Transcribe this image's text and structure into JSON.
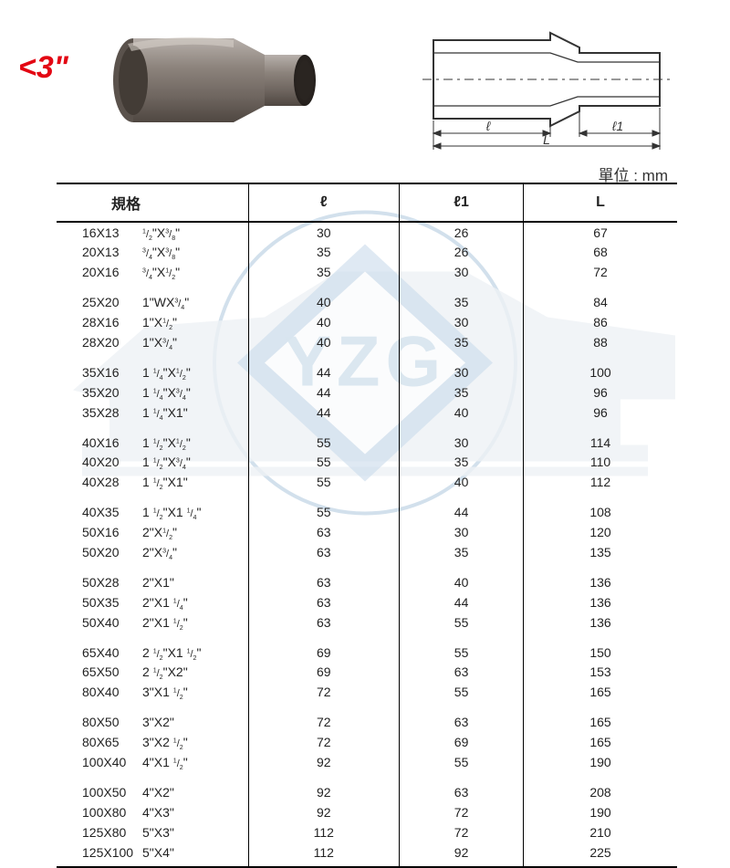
{
  "header": {
    "size_label": "<3\"",
    "size_label_color": "#e30613",
    "unit_label": "單位 : mm"
  },
  "table": {
    "columns": [
      "規格",
      "ℓ",
      "ℓ1",
      "L"
    ],
    "groups": [
      [
        {
          "code": "16X13",
          "inch": "1/2\"X3/8\"",
          "l": "30",
          "l1": "26",
          "L": "67"
        },
        {
          "code": "20X13",
          "inch": "3/4\"X3/8\"",
          "l": "35",
          "l1": "26",
          "L": "68"
        },
        {
          "code": "20X16",
          "inch": "3/4\"X1/2\"",
          "l": "35",
          "l1": "30",
          "L": "72"
        }
      ],
      [
        {
          "code": "25X20",
          "inch": "1\"WX3/4\"",
          "l": "40",
          "l1": "35",
          "L": "84"
        },
        {
          "code": "28X16",
          "inch": "1\"X1/2\"",
          "l": "40",
          "l1": "30",
          "L": "86"
        },
        {
          "code": "28X20",
          "inch": "1\"X3/4\"",
          "l": "40",
          "l1": "35",
          "L": "88"
        }
      ],
      [
        {
          "code": "35X16",
          "inch": "1 1/4\"X1/2\"",
          "l": "44",
          "l1": "30",
          "L": "100"
        },
        {
          "code": "35X20",
          "inch": "1 1/4\"X3/4\"",
          "l": "44",
          "l1": "35",
          "L": "96"
        },
        {
          "code": "35X28",
          "inch": "1 1/4\"X1\"",
          "l": "44",
          "l1": "40",
          "L": "96"
        }
      ],
      [
        {
          "code": "40X16",
          "inch": "1 1/2\"X1/2\"",
          "l": "55",
          "l1": "30",
          "L": "114"
        },
        {
          "code": "40X20",
          "inch": "1 1/2\"X3/4\"",
          "l": "55",
          "l1": "35",
          "L": "110"
        },
        {
          "code": "40X28",
          "inch": "1 1/2\"X1\"",
          "l": "55",
          "l1": "40",
          "L": "112"
        }
      ],
      [
        {
          "code": "40X35",
          "inch": "1 1/2\"X1 1/4\"",
          "l": "55",
          "l1": "44",
          "L": "108"
        },
        {
          "code": "50X16",
          "inch": "2\"X1/2\"",
          "l": "63",
          "l1": "30",
          "L": "120"
        },
        {
          "code": "50X20",
          "inch": "2\"X3/4\"",
          "l": "63",
          "l1": "35",
          "L": "135"
        }
      ],
      [
        {
          "code": "50X28",
          "inch": "2\"X1\"",
          "l": "63",
          "l1": "40",
          "L": "136"
        },
        {
          "code": "50X35",
          "inch": "2\"X1 1/4\"",
          "l": "63",
          "l1": "44",
          "L": "136"
        },
        {
          "code": "50X40",
          "inch": "2\"X1 1/2\"",
          "l": "63",
          "l1": "55",
          "L": "136"
        }
      ],
      [
        {
          "code": "65X40",
          "inch": "2 1/2\"X1 1/2\"",
          "l": "69",
          "l1": "55",
          "L": "150"
        },
        {
          "code": "65X50",
          "inch": "2 1/2\"X2\"",
          "l": "69",
          "l1": "63",
          "L": "153"
        },
        {
          "code": "80X40",
          "inch": "3\"X1 1/2\"",
          "l": "72",
          "l1": "55",
          "L": "165"
        }
      ],
      [
        {
          "code": "80X50",
          "inch": "3\"X2\"",
          "l": "72",
          "l1": "63",
          "L": "165"
        },
        {
          "code": "80X65",
          "inch": "3\"X2 1/2\"",
          "l": "72",
          "l1": "69",
          "L": "165"
        },
        {
          "code": "100X40",
          "inch": "4\"X1 1/2\"",
          "l": "92",
          "l1": "55",
          "L": "190"
        }
      ],
      [
        {
          "code": "100X50",
          "inch": "4\"X2\"",
          "l": "92",
          "l1": "63",
          "L": "208"
        },
        {
          "code": "100X80",
          "inch": "4\"X3\"",
          "l": "92",
          "l1": "72",
          "L": "190"
        },
        {
          "code": "125X80",
          "inch": "5\"X3\"",
          "l": "112",
          "l1": "72",
          "L": "210"
        },
        {
          "code": "125X100",
          "inch": "5\"X4\"",
          "l": "112",
          "l1": "92",
          "L": "225"
        }
      ]
    ]
  },
  "styling": {
    "background_color": "#ffffff",
    "text_color": "#222222",
    "border_color": "#000000",
    "watermark_color_outline": "#7fa9c9",
    "watermark_color_shape": "#cfd9e4",
    "watermark_text": "YZG",
    "watermark_text_color": "#8fb4cf",
    "font_family": "Arial, Microsoft JhengHei, sans-serif",
    "header_font_size_pt": 12,
    "body_font_size_pt": 10
  }
}
